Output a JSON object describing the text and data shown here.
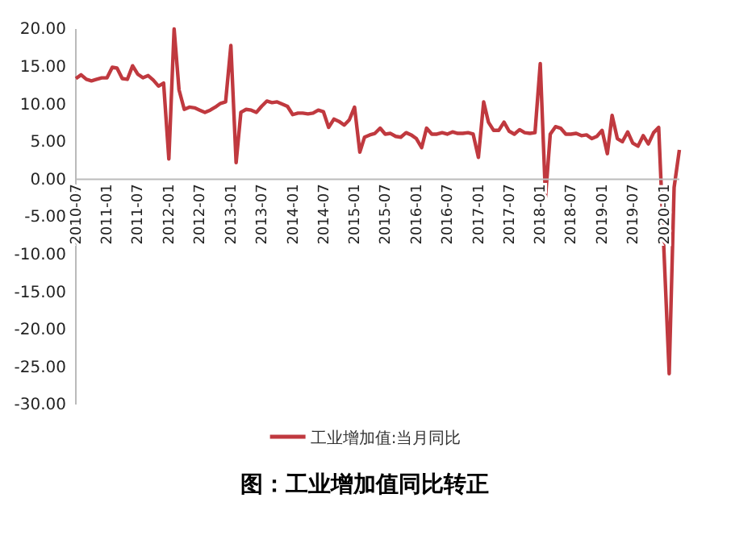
{
  "chart_data": {
    "type": "line",
    "title": "图：工业增加值同比转正",
    "x": [
      "2010-07",
      "2010-08",
      "2010-09",
      "2010-10",
      "2010-11",
      "2010-12",
      "2011-01",
      "2011-02",
      "2011-03",
      "2011-04",
      "2011-05",
      "2011-06",
      "2011-07",
      "2011-08",
      "2011-09",
      "2011-10",
      "2011-11",
      "2011-12",
      "2012-01",
      "2012-02",
      "2012-03",
      "2012-04",
      "2012-05",
      "2012-06",
      "2012-07",
      "2012-08",
      "2012-09",
      "2012-10",
      "2012-11",
      "2012-12",
      "2013-01",
      "2013-02",
      "2013-03",
      "2013-04",
      "2013-05",
      "2013-06",
      "2013-07",
      "2013-08",
      "2013-09",
      "2013-10",
      "2013-11",
      "2013-12",
      "2014-01",
      "2014-02",
      "2014-03",
      "2014-04",
      "2014-05",
      "2014-06",
      "2014-07",
      "2014-08",
      "2014-09",
      "2014-10",
      "2014-11",
      "2014-12",
      "2015-01",
      "2015-02",
      "2015-03",
      "2015-04",
      "2015-05",
      "2015-06",
      "2015-07",
      "2015-08",
      "2015-09",
      "2015-10",
      "2015-11",
      "2015-12",
      "2016-01",
      "2016-02",
      "2016-03",
      "2016-04",
      "2016-05",
      "2016-06",
      "2016-07",
      "2016-08",
      "2016-09",
      "2016-10",
      "2016-11",
      "2016-12",
      "2017-01",
      "2017-02",
      "2017-03",
      "2017-04",
      "2017-05",
      "2017-06",
      "2017-07",
      "2017-08",
      "2017-09",
      "2017-10",
      "2017-11",
      "2017-12",
      "2018-01",
      "2018-02",
      "2018-03",
      "2018-04",
      "2018-05",
      "2018-06",
      "2018-07",
      "2018-08",
      "2018-09",
      "2018-10",
      "2018-11",
      "2018-12",
      "2019-01",
      "2019-02",
      "2019-03",
      "2019-04",
      "2019-05",
      "2019-06",
      "2019-07",
      "2019-08",
      "2019-09",
      "2019-10",
      "2019-11",
      "2019-12",
      "2020-02",
      "2020-03",
      "2020-04"
    ],
    "series": [
      {
        "name": "工业增加值:当月同比",
        "color": "#c0393f",
        "values": [
          13.4,
          13.9,
          13.3,
          13.1,
          13.3,
          13.5,
          13.5,
          14.9,
          14.8,
          13.4,
          13.3,
          15.1,
          14.0,
          13.5,
          13.8,
          13.2,
          12.4,
          12.8,
          2.7,
          20.0,
          11.9,
          9.3,
          9.6,
          9.5,
          9.2,
          8.9,
          9.2,
          9.6,
          10.1,
          10.3,
          17.8,
          2.2,
          8.9,
          9.3,
          9.2,
          8.9,
          9.7,
          10.4,
          10.2,
          10.3,
          10.0,
          9.7,
          8.6,
          8.8,
          8.8,
          8.7,
          8.8,
          9.2,
          9.0,
          6.9,
          8.0,
          7.7,
          7.2,
          7.9,
          9.6,
          3.6,
          5.6,
          5.9,
          6.1,
          6.8,
          6.0,
          6.1,
          5.7,
          5.6,
          6.2,
          5.9,
          5.4,
          4.2,
          6.8,
          6.0,
          6.0,
          6.2,
          6.0,
          6.3,
          6.1,
          6.1,
          6.2,
          6.0,
          2.9,
          10.3,
          7.6,
          6.5,
          6.5,
          7.6,
          6.4,
          6.0,
          6.6,
          6.2,
          6.1,
          6.2,
          15.4,
          -2.4,
          6.0,
          7.0,
          6.8,
          6.0,
          6.0,
          6.1,
          5.8,
          5.9,
          5.4,
          5.7,
          6.5,
          3.4,
          8.5,
          5.4,
          5.0,
          6.3,
          4.8,
          4.4,
          5.8,
          4.7,
          6.2,
          6.9,
          -25.9,
          -1.1,
          3.9
        ]
      }
    ],
    "xlim": [
      "2010-07",
      "2020-04"
    ],
    "xticks": [
      "2010-07",
      "2011-01",
      "2011-07",
      "2012-01",
      "2012-07",
      "2013-01",
      "2013-07",
      "2014-01",
      "2014-07",
      "2015-01",
      "2015-07",
      "2016-01",
      "2016-07",
      "2017-01",
      "2017-07",
      "2018-01",
      "2018-07",
      "2019-01",
      "2019-07",
      "2020-01"
    ],
    "ylim": [
      -30,
      20
    ],
    "yticks": [
      {
        "value": -30,
        "label": "-30.00"
      },
      {
        "value": -25,
        "label": "-25.00"
      },
      {
        "value": -20,
        "label": "-20.00"
      },
      {
        "value": -15,
        "label": "-15.00"
      },
      {
        "value": -10,
        "label": "-10.00"
      },
      {
        "value": -5,
        "label": "-5.00"
      },
      {
        "value": 0,
        "label": "0.00"
      },
      {
        "value": 5,
        "label": "5.00"
      },
      {
        "value": 10,
        "label": "10.00"
      },
      {
        "value": 15,
        "label": "15.00"
      },
      {
        "value": 20,
        "label": "20.00"
      }
    ],
    "legend": "bottom",
    "grid": false
  }
}
